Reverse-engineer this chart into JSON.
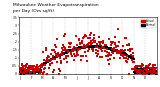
{
  "title": "Milwaukee Weather Evapotranspiration",
  "title2": "per Day (Ozs sq/ft)",
  "title_fontsize": 3.2,
  "background_color": "#ffffff",
  "dot_color_actual": "#cc0000",
  "dot_color_normal": "#000000",
  "legend_label_actual": "Actual",
  "legend_label_normal": "Normal",
  "ylim": [
    0,
    0.35
  ],
  "xlim": [
    0,
    366
  ],
  "month_ticks": [
    1,
    32,
    60,
    91,
    121,
    152,
    182,
    213,
    244,
    274,
    305,
    335
  ],
  "month_labels": [
    "J",
    "F",
    "M",
    "A",
    "M",
    "J",
    "J",
    "A",
    "S",
    "O",
    "N",
    "D"
  ],
  "ytick_labels": [
    "0",
    ".05",
    ".1",
    ".15",
    ".2",
    ".25",
    ".3",
    ".35"
  ],
  "ytick_values": [
    0,
    0.05,
    0.1,
    0.15,
    0.2,
    0.25,
    0.3,
    0.35
  ],
  "grid_color": "#aaaaaa",
  "dot_size": 0.8,
  "line_width": 0.3
}
